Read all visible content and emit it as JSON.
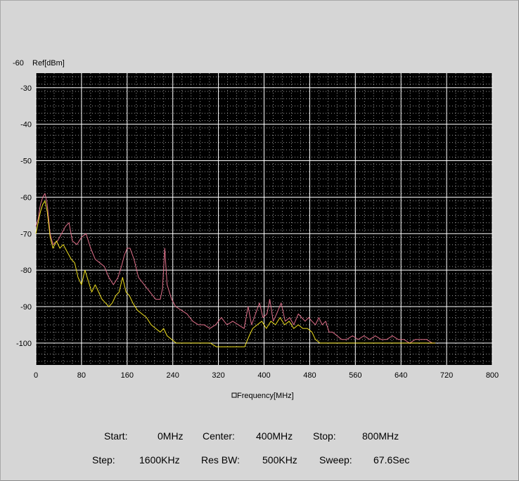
{
  "chart_data": {
    "type": "line",
    "ref_value": "-60",
    "ylabel": "Ref[dBm]",
    "xlabel": "Frequency[MHz]",
    "xlim": [
      0,
      800
    ],
    "ylim": [
      -106,
      -26
    ],
    "x_ticks": [
      0,
      80,
      160,
      240,
      320,
      400,
      480,
      560,
      640,
      720,
      800
    ],
    "y_ticks": [
      -30,
      -40,
      -50,
      -60,
      -70,
      -80,
      -90,
      -100
    ],
    "grid": true,
    "minor_grid": true,
    "colors": {
      "plot_bg": "#000000",
      "major_grid": "#ffffff",
      "minor_grid": "#9a9a9a",
      "series_pink": "#e0708a",
      "series_yellow": "#f0e020",
      "outer_bg": "#d6d6d6"
    },
    "series": [
      {
        "color": "#e0708a",
        "points": [
          [
            0,
            -68
          ],
          [
            4,
            -66
          ],
          [
            8,
            -62
          ],
          [
            12,
            -60
          ],
          [
            16,
            -59
          ],
          [
            20,
            -62
          ],
          [
            25,
            -70
          ],
          [
            30,
            -73
          ],
          [
            38,
            -72
          ],
          [
            45,
            -70
          ],
          [
            52,
            -68
          ],
          [
            58,
            -67
          ],
          [
            64,
            -72
          ],
          [
            72,
            -73
          ],
          [
            80,
            -71
          ],
          [
            88,
            -70
          ],
          [
            96,
            -74
          ],
          [
            104,
            -77
          ],
          [
            112,
            -78
          ],
          [
            120,
            -79
          ],
          [
            128,
            -82
          ],
          [
            136,
            -84
          ],
          [
            144,
            -82
          ],
          [
            150,
            -79
          ],
          [
            155,
            -76
          ],
          [
            160,
            -74
          ],
          [
            165,
            -74
          ],
          [
            172,
            -77
          ],
          [
            180,
            -82
          ],
          [
            190,
            -84
          ],
          [
            200,
            -86
          ],
          [
            210,
            -88
          ],
          [
            218,
            -88
          ],
          [
            222,
            -85
          ],
          [
            226,
            -74
          ],
          [
            230,
            -84
          ],
          [
            238,
            -88
          ],
          [
            245,
            -90
          ],
          [
            255,
            -91
          ],
          [
            265,
            -92
          ],
          [
            275,
            -94
          ],
          [
            285,
            -95
          ],
          [
            295,
            -95
          ],
          [
            305,
            -96
          ],
          [
            315,
            -95
          ],
          [
            325,
            -93
          ],
          [
            335,
            -95
          ],
          [
            345,
            -94
          ],
          [
            355,
            -95
          ],
          [
            365,
            -96
          ],
          [
            372,
            -90
          ],
          [
            378,
            -95
          ],
          [
            385,
            -92
          ],
          [
            392,
            -89
          ],
          [
            398,
            -93
          ],
          [
            405,
            -92
          ],
          [
            410,
            -88
          ],
          [
            416,
            -94
          ],
          [
            422,
            -92
          ],
          [
            430,
            -89
          ],
          [
            437,
            -94
          ],
          [
            445,
            -93
          ],
          [
            452,
            -95
          ],
          [
            460,
            -92
          ],
          [
            466,
            -93
          ],
          [
            472,
            -94
          ],
          [
            478,
            -93
          ],
          [
            484,
            -94
          ],
          [
            490,
            -95
          ],
          [
            496,
            -93
          ],
          [
            502,
            -95
          ],
          [
            508,
            -94
          ],
          [
            514,
            -97
          ],
          [
            520,
            -97
          ],
          [
            528,
            -98
          ],
          [
            536,
            -99
          ],
          [
            545,
            -99
          ],
          [
            555,
            -98
          ],
          [
            565,
            -99
          ],
          [
            575,
            -98
          ],
          [
            585,
            -99
          ],
          [
            595,
            -98
          ],
          [
            605,
            -99
          ],
          [
            615,
            -99
          ],
          [
            625,
            -98
          ],
          [
            635,
            -99
          ],
          [
            645,
            -99
          ],
          [
            655,
            -100
          ],
          [
            665,
            -99
          ],
          [
            675,
            -99
          ],
          [
            685,
            -99
          ],
          [
            695,
            -100
          ],
          [
            700,
            -100
          ]
        ]
      },
      {
        "color": "#f0e020",
        "points": [
          [
            0,
            -70
          ],
          [
            4,
            -67
          ],
          [
            8,
            -64
          ],
          [
            12,
            -62
          ],
          [
            16,
            -61
          ],
          [
            20,
            -64
          ],
          [
            25,
            -71
          ],
          [
            30,
            -74
          ],
          [
            36,
            -72
          ],
          [
            42,
            -74
          ],
          [
            48,
            -73
          ],
          [
            55,
            -75
          ],
          [
            62,
            -77
          ],
          [
            68,
            -78
          ],
          [
            74,
            -82
          ],
          [
            80,
            -84
          ],
          [
            86,
            -80
          ],
          [
            92,
            -83
          ],
          [
            98,
            -86
          ],
          [
            104,
            -84
          ],
          [
            110,
            -86
          ],
          [
            116,
            -88
          ],
          [
            122,
            -89
          ],
          [
            128,
            -90
          ],
          [
            134,
            -89
          ],
          [
            140,
            -87
          ],
          [
            146,
            -86
          ],
          [
            152,
            -82
          ],
          [
            158,
            -86
          ],
          [
            164,
            -87
          ],
          [
            170,
            -89
          ],
          [
            178,
            -91
          ],
          [
            186,
            -92
          ],
          [
            194,
            -93
          ],
          [
            202,
            -95
          ],
          [
            210,
            -96
          ],
          [
            218,
            -97
          ],
          [
            224,
            -96
          ],
          [
            230,
            -98
          ],
          [
            238,
            -99
          ],
          [
            246,
            -100
          ],
          [
            256,
            -100
          ],
          [
            266,
            -100
          ],
          [
            276,
            -100
          ],
          [
            286,
            -100
          ],
          [
            296,
            -100
          ],
          [
            306,
            -100
          ],
          [
            316,
            -101
          ],
          [
            326,
            -101
          ],
          [
            336,
            -101
          ],
          [
            346,
            -101
          ],
          [
            356,
            -101
          ],
          [
            366,
            -101
          ],
          [
            374,
            -98
          ],
          [
            380,
            -96
          ],
          [
            388,
            -95
          ],
          [
            396,
            -94
          ],
          [
            404,
            -96
          ],
          [
            412,
            -94
          ],
          [
            420,
            -95
          ],
          [
            428,
            -93
          ],
          [
            436,
            -95
          ],
          [
            444,
            -94
          ],
          [
            452,
            -96
          ],
          [
            460,
            -95
          ],
          [
            468,
            -96
          ],
          [
            476,
            -96
          ],
          [
            484,
            -97
          ],
          [
            490,
            -99
          ],
          [
            498,
            -100
          ],
          [
            506,
            -100
          ],
          [
            514,
            -100
          ],
          [
            524,
            -100
          ],
          [
            534,
            -100
          ],
          [
            544,
            -100
          ],
          [
            554,
            -100
          ],
          [
            564,
            -100
          ],
          [
            574,
            -100
          ],
          [
            584,
            -100
          ],
          [
            594,
            -100
          ],
          [
            604,
            -100
          ],
          [
            614,
            -100
          ],
          [
            624,
            -100
          ],
          [
            634,
            -100
          ],
          [
            644,
            -100
          ],
          [
            654,
            -100
          ],
          [
            664,
            -100
          ],
          [
            674,
            -100
          ],
          [
            684,
            -100
          ],
          [
            694,
            -100
          ],
          [
            700,
            -100
          ]
        ]
      }
    ]
  },
  "footer": {
    "start_label": "Start:",
    "start_value": "0MHz",
    "center_label": "Center:",
    "center_value": "400MHz",
    "stop_label": "Stop:",
    "stop_value": "800MHz",
    "step_label": "Step:",
    "step_value": "1600KHz",
    "res_bw_label": "Res BW:",
    "res_bw_value": "500KHz",
    "sweep_label": "Sweep:",
    "sweep_value": "67.6Sec"
  }
}
